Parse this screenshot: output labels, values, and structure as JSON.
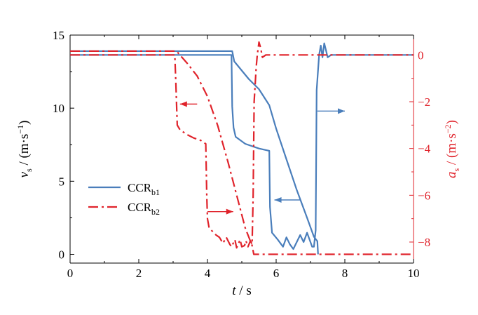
{
  "chart_data": {
    "type": "line",
    "x_axis": {
      "label_var": "t",
      "label_unit": " / s",
      "range": [
        0,
        10
      ],
      "ticks": [
        0,
        2,
        4,
        6,
        8,
        10
      ],
      "tick_labels": [
        "0",
        "2",
        "4",
        "6",
        "8",
        "10"
      ]
    },
    "y_left": {
      "label_var": "v",
      "label_sub": "s",
      "label_unit_pre": " / (m·s",
      "label_unit_sup": "−1",
      "label_unit_post": ")",
      "range": [
        -0.6,
        15
      ],
      "ticks": [
        0,
        5,
        10,
        15
      ],
      "tick_labels": [
        "0",
        "5",
        "10",
        "15"
      ]
    },
    "y_right": {
      "label_var": "a",
      "label_sub": "s",
      "label_unit_pre": " / (m·s",
      "label_unit_sup": "−2",
      "label_unit_post": ")",
      "range": [
        -8.9,
        0.85
      ],
      "ticks": [
        0,
        -2,
        -4,
        -6,
        -8
      ],
      "tick_labels": [
        "0",
        "−2",
        "−4",
        "−6",
        "−8"
      ],
      "color": "#e0232b"
    },
    "series": [
      {
        "name": "CCR",
        "sub": "b1",
        "color": "#4a7ebb",
        "dash": "solid",
        "velocity": [
          [
            0,
            13.9
          ],
          [
            4.72,
            13.9
          ],
          [
            4.78,
            13.2
          ],
          [
            5.2,
            12.0
          ],
          [
            5.5,
            11.3
          ],
          [
            5.8,
            10.2
          ],
          [
            6.0,
            8.6
          ],
          [
            6.3,
            6.5
          ],
          [
            6.6,
            4.4
          ],
          [
            6.9,
            2.5
          ],
          [
            7.1,
            1.2
          ],
          [
            7.2,
            0.9
          ],
          [
            7.22,
            0
          ]
        ],
        "acceleration": [
          [
            0,
            0
          ],
          [
            4.7,
            0
          ],
          [
            4.72,
            -2.2
          ],
          [
            4.76,
            -3.1
          ],
          [
            4.82,
            -3.5
          ],
          [
            5.1,
            -3.8
          ],
          [
            5.5,
            -4.0
          ],
          [
            5.8,
            -4.1
          ],
          [
            5.82,
            -6.5
          ],
          [
            5.88,
            -7.6
          ],
          [
            6.05,
            -7.9
          ],
          [
            6.2,
            -8.2
          ],
          [
            6.3,
            -7.8
          ],
          [
            6.4,
            -8.1
          ],
          [
            6.5,
            -8.3
          ],
          [
            6.6,
            -8.0
          ],
          [
            6.7,
            -7.7
          ],
          [
            6.8,
            -8.0
          ],
          [
            6.9,
            -7.6
          ],
          [
            7.05,
            -8.2
          ],
          [
            7.1,
            -8.2
          ],
          [
            7.15,
            -7.5
          ],
          [
            7.18,
            -1.5
          ],
          [
            7.25,
            0
          ],
          [
            7.3,
            0.4
          ],
          [
            7.35,
            -0.1
          ],
          [
            7.4,
            0.5
          ],
          [
            7.45,
            0.2
          ],
          [
            7.5,
            -0.1
          ],
          [
            7.6,
            0
          ],
          [
            10,
            0
          ]
        ]
      },
      {
        "name": "CCR",
        "sub": "b2",
        "color": "#e0232b",
        "dash": "dashdot",
        "velocity": [
          [
            0,
            13.9
          ],
          [
            3.1,
            13.9
          ],
          [
            3.4,
            13.1
          ],
          [
            3.7,
            12.2
          ],
          [
            4.0,
            10.8
          ],
          [
            4.3,
            8.8
          ],
          [
            4.6,
            6.3
          ],
          [
            4.9,
            3.6
          ],
          [
            5.1,
            1.8
          ],
          [
            5.3,
            0.6
          ],
          [
            5.35,
            0
          ],
          [
            10,
            0
          ]
        ],
        "acceleration": [
          [
            0,
            0
          ],
          [
            3.05,
            0
          ],
          [
            3.08,
            -1.2
          ],
          [
            3.1,
            -2.1
          ],
          [
            3.12,
            -3.0
          ],
          [
            3.2,
            -3.2
          ],
          [
            3.4,
            -3.4
          ],
          [
            3.6,
            -3.55
          ],
          [
            3.8,
            -3.65
          ],
          [
            3.95,
            -3.8
          ],
          [
            3.98,
            -6.0
          ],
          [
            4.0,
            -7.0
          ],
          [
            4.05,
            -7.4
          ],
          [
            4.15,
            -7.55
          ],
          [
            4.25,
            -7.7
          ],
          [
            4.35,
            -7.8
          ],
          [
            4.45,
            -8.05
          ],
          [
            4.55,
            -7.8
          ],
          [
            4.65,
            -8.1
          ],
          [
            4.7,
            -8.2
          ],
          [
            4.8,
            -7.9
          ],
          [
            4.85,
            -8.25
          ],
          [
            4.95,
            -7.9
          ],
          [
            5.0,
            -8.2
          ],
          [
            5.08,
            -8.15
          ],
          [
            5.12,
            -7.95
          ],
          [
            5.18,
            -8.2
          ],
          [
            5.25,
            -7.95
          ],
          [
            5.3,
            -8.1
          ],
          [
            5.33,
            -6.0
          ],
          [
            5.36,
            -2.0
          ],
          [
            5.42,
            -0.5
          ],
          [
            5.45,
            0
          ],
          [
            5.5,
            0.55
          ],
          [
            5.55,
            0.3
          ],
          [
            5.6,
            -0.1
          ],
          [
            5.7,
            0
          ],
          [
            10,
            0
          ]
        ]
      }
    ],
    "legend": {
      "position": "middle-left"
    },
    "annotations": [
      {
        "kind": "arrow",
        "color": "#e0232b",
        "direction": "left",
        "x0": 3.7,
        "x1": 3.2,
        "axis": "right",
        "y": -2.1
      },
      {
        "kind": "arrow",
        "color": "#e0232b",
        "direction": "right",
        "x0": 4.0,
        "x1": 4.75,
        "axis": "right",
        "y": -6.7
      },
      {
        "kind": "arrow",
        "color": "#4a7ebb",
        "direction": "left",
        "x0": 6.7,
        "x1": 5.95,
        "axis": "right",
        "y": -6.2
      },
      {
        "kind": "arrow",
        "color": "#4a7ebb",
        "direction": "right",
        "x0": 7.2,
        "x1": 8.0,
        "axis": "right",
        "y": -2.4
      }
    ],
    "grid": false
  }
}
